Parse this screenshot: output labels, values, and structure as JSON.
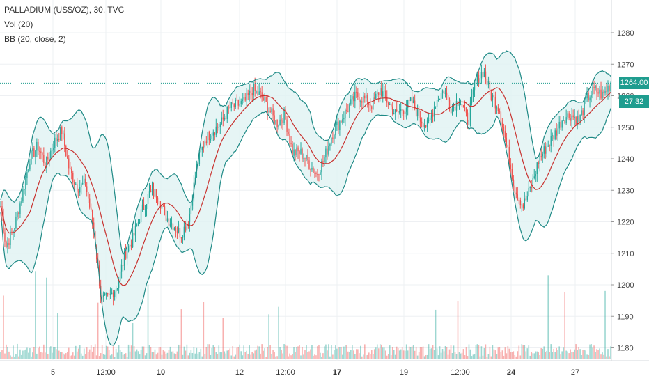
{
  "legend": {
    "symbol": "PALLADIUM (US$/OZ), 30, TVC",
    "volume": "Vol (20)",
    "bollinger": "BB (20, close, 2)"
  },
  "price_axis": {
    "last_price": "1264.00",
    "countdown": "27:32"
  },
  "colors": {
    "up": "#26a69a",
    "down": "#ef5350",
    "bb_band": "#1f8a86",
    "bb_fill": "#e0f3f2",
    "basis": "#c8322f",
    "grid": "#eef0f3"
  },
  "chart_data": {
    "type": "candlestick",
    "title": "PALLADIUM (US$/OZ), 30, TVC",
    "indicators": [
      "Vol (20)",
      "BB (20, close, 2)"
    ],
    "ylim": [
      1177,
      1290
    ],
    "y_ticks": [
      1180,
      1190,
      1200,
      1210,
      1220,
      1230,
      1240,
      1250,
      1260,
      1270,
      1280
    ],
    "x_ticks": [
      "5",
      "12:00",
      "10",
      "12",
      "12:00",
      "17",
      "19",
      "12:00",
      "24",
      "27"
    ],
    "x_ticks_bold": [
      "10",
      "17",
      "24"
    ],
    "last_price": 1264.0,
    "grid": true,
    "price_path": [
      [
        0,
        1225
      ],
      [
        4,
        1212
      ],
      [
        10,
        1218
      ],
      [
        16,
        1228
      ],
      [
        22,
        1240
      ],
      [
        28,
        1244
      ],
      [
        34,
        1238
      ],
      [
        40,
        1245
      ],
      [
        46,
        1249
      ],
      [
        52,
        1236
      ],
      [
        58,
        1231
      ],
      [
        64,
        1232
      ],
      [
        70,
        1218
      ],
      [
        76,
        1195
      ],
      [
        82,
        1196
      ],
      [
        88,
        1200
      ],
      [
        94,
        1210
      ],
      [
        100,
        1215
      ],
      [
        106,
        1223
      ],
      [
        112,
        1229
      ],
      [
        118,
        1229
      ],
      [
        124,
        1222
      ],
      [
        130,
        1219
      ],
      [
        136,
        1216
      ],
      [
        142,
        1221
      ],
      [
        148,
        1238
      ],
      [
        154,
        1246
      ],
      [
        160,
        1249
      ],
      [
        166,
        1251
      ],
      [
        172,
        1256
      ],
      [
        178,
        1257
      ],
      [
        184,
        1258
      ],
      [
        190,
        1262
      ],
      [
        196,
        1260
      ],
      [
        202,
        1256
      ],
      [
        208,
        1251
      ],
      [
        214,
        1254
      ],
      [
        220,
        1242
      ],
      [
        226,
        1242
      ],
      [
        232,
        1239
      ],
      [
        238,
        1235
      ],
      [
        244,
        1240
      ],
      [
        250,
        1248
      ],
      [
        256,
        1252
      ],
      [
        262,
        1256
      ],
      [
        268,
        1260
      ],
      [
        274,
        1259
      ],
      [
        280,
        1257
      ],
      [
        286,
        1262
      ],
      [
        292,
        1258
      ],
      [
        298,
        1254
      ],
      [
        304,
        1256
      ],
      [
        310,
        1258
      ],
      [
        316,
        1253
      ],
      [
        322,
        1250
      ],
      [
        328,
        1258
      ],
      [
        334,
        1262
      ],
      [
        340,
        1256
      ],
      [
        346,
        1259
      ],
      [
        352,
        1252
      ],
      [
        358,
        1264
      ],
      [
        364,
        1268
      ],
      [
        370,
        1260
      ],
      [
        376,
        1256
      ],
      [
        382,
        1243
      ],
      [
        388,
        1230
      ],
      [
        394,
        1225
      ],
      [
        400,
        1231
      ],
      [
        406,
        1240
      ],
      [
        412,
        1244
      ],
      [
        418,
        1248
      ],
      [
        424,
        1253
      ],
      [
        430,
        1254
      ],
      [
        436,
        1252
      ],
      [
        442,
        1259
      ],
      [
        448,
        1262
      ],
      [
        454,
        1260
      ],
      [
        460,
        1264
      ]
    ],
    "volume_ylim": [
      0,
      100
    ]
  }
}
